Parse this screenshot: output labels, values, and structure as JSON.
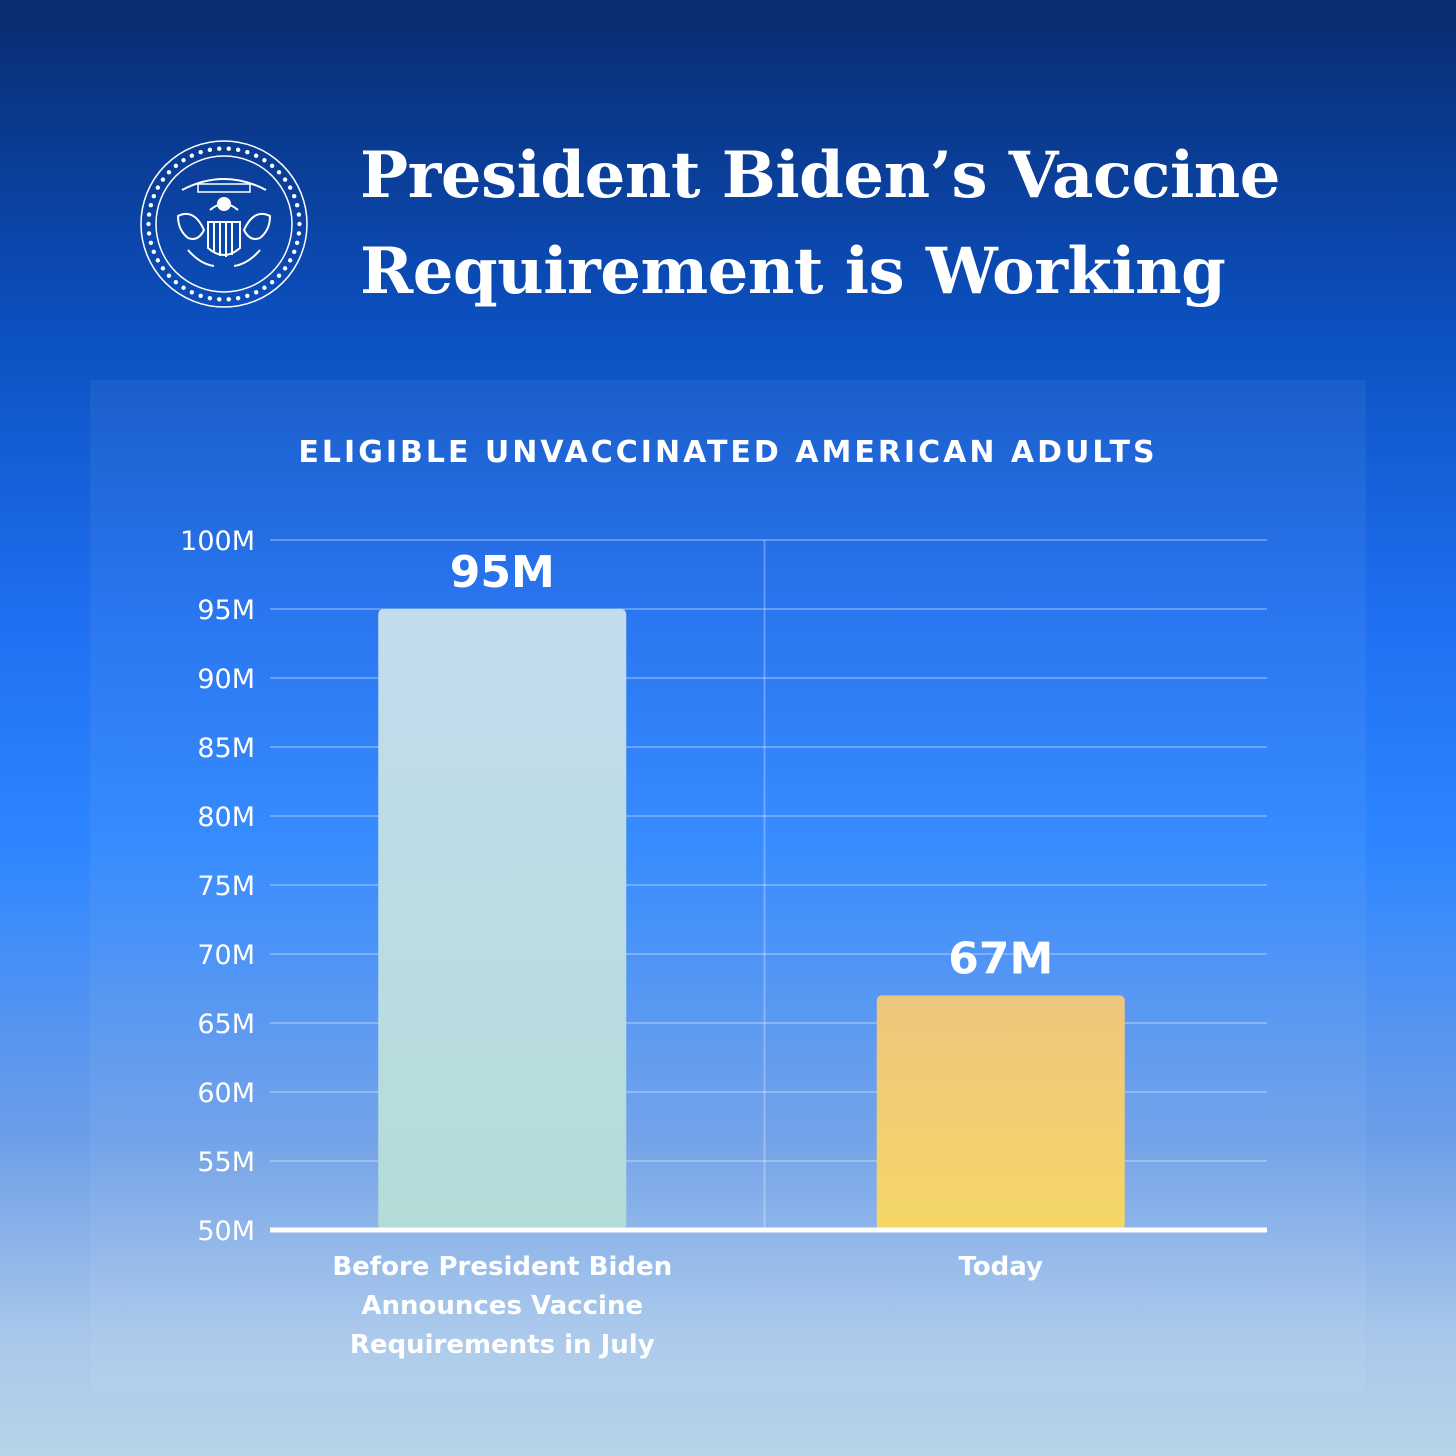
{
  "header": {
    "title_line1": "President Biden’s Vaccine",
    "title_line2": "Requirement is Working",
    "seal_icon": "presidential-seal-icon"
  },
  "chart_data": {
    "type": "bar",
    "title": "ELIGIBLE UNVACCINATED AMERICAN ADULTS",
    "categories": [
      "Before President Biden\nAnnounces Vaccine\nRequirements in July",
      "Today"
    ],
    "values": [
      95,
      67
    ],
    "value_labels": [
      "95M",
      "67M"
    ],
    "bar_colors": [
      [
        "#c3dcee",
        "#b3dcd8"
      ],
      [
        "#eec57e",
        "#f5d766"
      ]
    ],
    "yticks": [
      50,
      55,
      60,
      65,
      70,
      75,
      80,
      85,
      90,
      95,
      100
    ],
    "ytick_labels": [
      "50M",
      "55M",
      "60M",
      "65M",
      "70M",
      "75M",
      "80M",
      "85M",
      "90M",
      "95M",
      "100M"
    ],
    "ylim": [
      50,
      100
    ],
    "grid": true
  }
}
